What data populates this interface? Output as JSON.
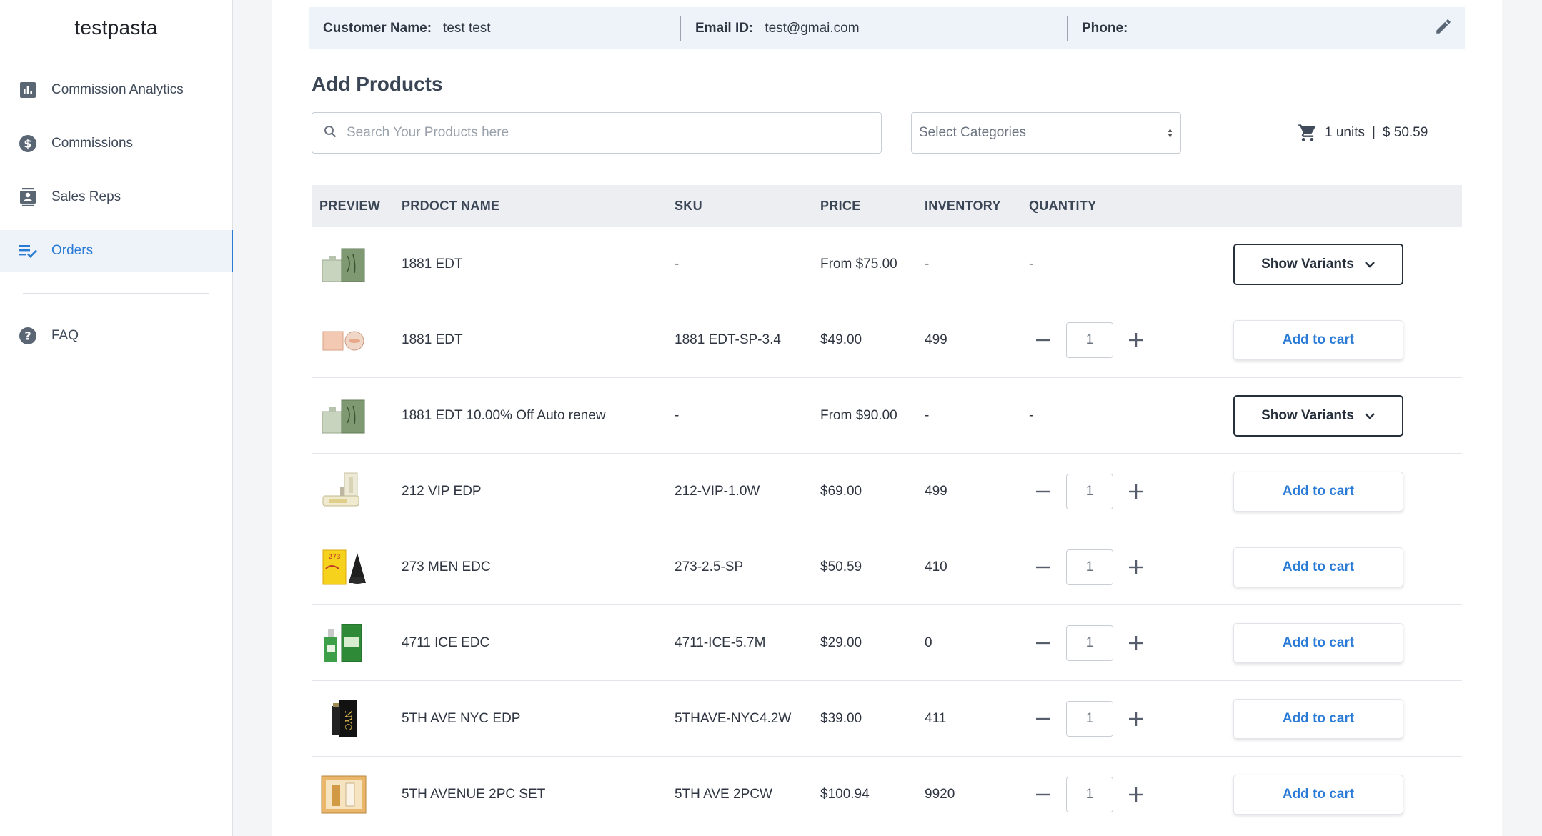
{
  "brand": "testpasta",
  "nav": {
    "items": [
      {
        "label": "Commission Analytics",
        "icon": "bar-chart-icon"
      },
      {
        "label": "Commissions",
        "icon": "dollar-circle-icon"
      },
      {
        "label": "Sales Reps",
        "icon": "contact-card-icon"
      },
      {
        "label": "Orders",
        "icon": "list-check-icon",
        "active": true
      }
    ],
    "faq": {
      "label": "FAQ",
      "icon": "help-circle-icon"
    }
  },
  "customer": {
    "name_label": "Customer Name:",
    "name": "test test",
    "email_label": "Email ID:",
    "email": "test@gmai.com",
    "phone_label": "Phone:",
    "phone": ""
  },
  "section_title": "Add Products",
  "search": {
    "placeholder": "Search Your Products here",
    "value": ""
  },
  "category_select": {
    "selected": "Select Categories"
  },
  "cart": {
    "units": "1 units",
    "separator": "|",
    "total": "$ 50.59"
  },
  "table": {
    "headers": {
      "preview": "PREVIEW",
      "name": "PRDOCT NAME",
      "sku": "SKU",
      "price": "PRICE",
      "inventory": "INVENTORY",
      "quantity": "QUANTITY"
    },
    "rows": [
      {
        "name": "1881 EDT",
        "sku": "-",
        "price": "From $75.00",
        "inventory": "-",
        "quantity": "-",
        "type": "variants",
        "action": "Show Variants",
        "thumb": "green-box"
      },
      {
        "name": "1881 EDT",
        "sku": "1881 EDT-SP-3.4",
        "price": "$49.00",
        "inventory": "499",
        "quantity": "1",
        "type": "cart",
        "action": "Add to cart",
        "thumb": "peach"
      },
      {
        "name": "1881 EDT 10.00% Off Auto renew",
        "sku": "-",
        "price": "From $90.00",
        "inventory": "-",
        "quantity": "-",
        "type": "variants",
        "action": "Show Variants",
        "thumb": "green-box"
      },
      {
        "name": "212 VIP EDP",
        "sku": "212-VIP-1.0W",
        "price": "$69.00",
        "inventory": "499",
        "quantity": "1",
        "type": "cart",
        "action": "Add to cart",
        "thumb": "vip"
      },
      {
        "name": "273 MEN EDC",
        "sku": "273-2.5-SP",
        "price": "$50.59",
        "inventory": "410",
        "quantity": "1",
        "type": "cart",
        "action": "Add to cart",
        "thumb": "yellow-black"
      },
      {
        "name": "4711 ICE EDC",
        "sku": "4711-ICE-5.7M",
        "price": "$29.00",
        "inventory": "0",
        "quantity": "1",
        "type": "cart",
        "action": "Add to cart",
        "thumb": "green-bottle"
      },
      {
        "name": "5TH AVE NYC EDP",
        "sku": "5THAVE-NYC4.2W",
        "price": "$39.00",
        "inventory": "411",
        "quantity": "1",
        "type": "cart",
        "action": "Add to cart",
        "thumb": "black-nyc"
      },
      {
        "name": "5TH AVENUE 2PC SET",
        "sku": "5TH AVE 2PCW",
        "price": "$100.94",
        "inventory": "9920",
        "quantity": "1",
        "type": "cart",
        "action": "Add to cart",
        "thumb": "gold-set"
      }
    ]
  },
  "colors": {
    "accent": "#2a7bd6",
    "active_bg": "#eef3fa",
    "header_bg": "#eceef1"
  }
}
